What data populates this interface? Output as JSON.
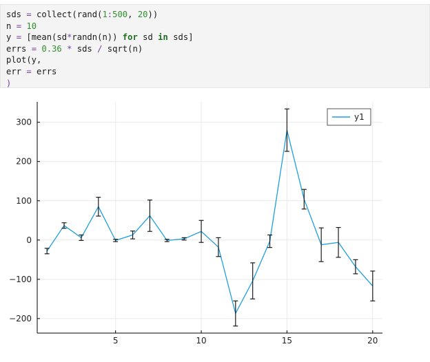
{
  "code": {
    "lines": [
      [
        {
          "t": "sds ",
          "c": ""
        },
        {
          "t": "=",
          "c": "op"
        },
        {
          "t": " collect(rand(",
          "c": ""
        },
        {
          "t": "1",
          "c": "num"
        },
        {
          "t": ":",
          "c": "op"
        },
        {
          "t": "500",
          "c": "num"
        },
        {
          "t": ", ",
          "c": ""
        },
        {
          "t": "20",
          "c": "num"
        },
        {
          "t": "))",
          "c": ""
        }
      ],
      [
        {
          "t": "n ",
          "c": ""
        },
        {
          "t": "=",
          "c": "op"
        },
        {
          "t": " ",
          "c": ""
        },
        {
          "t": "10",
          "c": "num"
        }
      ],
      [
        {
          "t": "y ",
          "c": ""
        },
        {
          "t": "=",
          "c": "op"
        },
        {
          "t": " [mean(sd",
          "c": ""
        },
        {
          "t": "*",
          "c": "op"
        },
        {
          "t": "randn(n)) ",
          "c": ""
        },
        {
          "t": "for",
          "c": "kw"
        },
        {
          "t": " sd ",
          "c": ""
        },
        {
          "t": "in",
          "c": "kw"
        },
        {
          "t": " sds]",
          "c": ""
        }
      ],
      [
        {
          "t": "errs ",
          "c": ""
        },
        {
          "t": "=",
          "c": "op"
        },
        {
          "t": " ",
          "c": ""
        },
        {
          "t": "0.36",
          "c": "num"
        },
        {
          "t": " ",
          "c": ""
        },
        {
          "t": "*",
          "c": "op"
        },
        {
          "t": " sds ",
          "c": ""
        },
        {
          "t": "/",
          "c": "op"
        },
        {
          "t": " sqrt(n)",
          "c": ""
        }
      ],
      [
        {
          "t": "plot(y,",
          "c": ""
        }
      ],
      [
        {
          "t": "err ",
          "c": ""
        },
        {
          "t": "=",
          "c": "op"
        },
        {
          "t": " errs",
          "c": ""
        }
      ],
      [
        {
          "t": ")",
          "c": "op"
        }
      ]
    ]
  },
  "chart_data": {
    "type": "line",
    "title": "",
    "xlabel": "",
    "ylabel": "",
    "xlim": [
      0.43,
      20.57
    ],
    "ylim": [
      -237,
      352
    ],
    "xticks": [
      5,
      10,
      15,
      20
    ],
    "yticks": [
      -200,
      -100,
      0,
      100,
      200,
      300
    ],
    "xtick_labels": [
      "5",
      "10",
      "15",
      "20"
    ],
    "ytick_labels": [
      "−200",
      "−100",
      "0",
      "100",
      "200",
      "300"
    ],
    "grid": true,
    "legend": "top-right",
    "series": [
      {
        "name": "y1",
        "color": "#1f9ede",
        "x": [
          1,
          2,
          3,
          4,
          5,
          6,
          7,
          8,
          9,
          10,
          11,
          12,
          13,
          14,
          15,
          16,
          17,
          18,
          19,
          20
        ],
        "y": [
          -28,
          37,
          6,
          85,
          -1,
          13,
          62,
          -1,
          3,
          22,
          -18,
          -187,
          -104,
          -3,
          280,
          104,
          -12,
          -6,
          -68,
          -117
        ],
        "err": [
          7,
          7,
          7,
          24,
          3,
          10,
          40,
          3,
          3,
          28,
          24,
          32,
          46,
          16,
          54,
          25,
          43,
          38,
          18,
          38
        ]
      }
    ]
  },
  "colors": {
    "error_bar": "#1a1a1a",
    "axis": "#000000",
    "grid": "#e9e9e9"
  }
}
